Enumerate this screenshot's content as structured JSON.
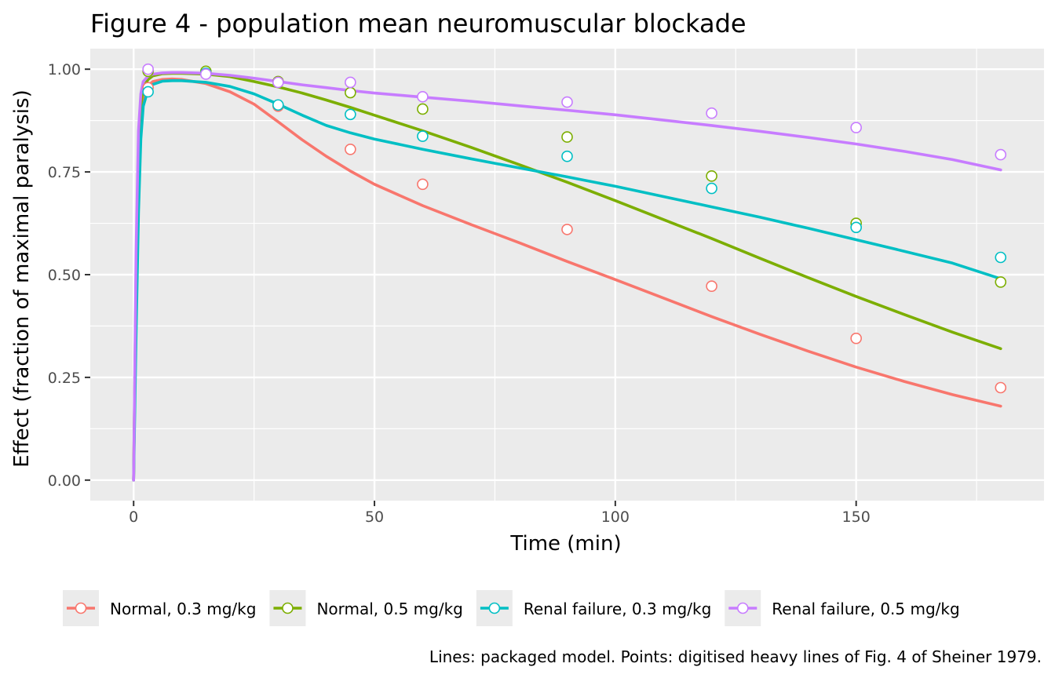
{
  "chart_data": {
    "type": "line",
    "title": "Figure 4 - population mean neuromuscular blockade",
    "xlabel": "Time (min)",
    "ylabel": "Effect (fraction of maximal paralysis)",
    "caption": "Lines: packaged model. Points: digitised heavy lines of Fig. 4 of Sheiner 1979.",
    "xlim": [
      -9,
      189
    ],
    "ylim": [
      -0.05,
      1.05
    ],
    "x_ticks": [
      0,
      50,
      100,
      150
    ],
    "x_tick_labels": [
      "0",
      "50",
      "100",
      "150"
    ],
    "y_ticks": [
      0,
      0.25,
      0.5,
      0.75,
      1.0
    ],
    "y_tick_labels": [
      "0.00",
      "0.25",
      "0.50",
      "0.75",
      "1.00"
    ],
    "grid": true,
    "legend_position": "bottom",
    "series": [
      {
        "name": "Normal, 0.3 mg/kg",
        "color": "#F8766D",
        "line": {
          "x": [
            0,
            0.5,
            1,
            1.5,
            2,
            3,
            4,
            6,
            8,
            10,
            15,
            20,
            25,
            30,
            35,
            40,
            45,
            50,
            60,
            70,
            80,
            90,
            100,
            110,
            120,
            130,
            140,
            150,
            160,
            170,
            180
          ],
          "y": [
            0,
            0.45,
            0.75,
            0.88,
            0.93,
            0.96,
            0.97,
            0.975,
            0.976,
            0.975,
            0.965,
            0.945,
            0.915,
            0.872,
            0.828,
            0.788,
            0.752,
            0.72,
            0.668,
            0.622,
            0.578,
            0.532,
            0.488,
            0.443,
            0.398,
            0.355,
            0.314,
            0.275,
            0.24,
            0.208,
            0.18
          ]
        },
        "points": {
          "x": [
            3,
            15,
            30,
            45,
            60,
            90,
            120,
            150,
            180
          ],
          "y": [
            0.955,
            0.99,
            0.91,
            0.805,
            0.72,
            0.61,
            0.472,
            0.345,
            0.225
          ]
        }
      },
      {
        "name": "Normal, 0.5 mg/kg",
        "color": "#7CAE00",
        "line": {
          "x": [
            0,
            0.5,
            1,
            1.5,
            2,
            3,
            4,
            6,
            8,
            10,
            15,
            20,
            25,
            30,
            35,
            40,
            45,
            50,
            60,
            70,
            80,
            90,
            100,
            110,
            120,
            130,
            140,
            150,
            160,
            170,
            180
          ],
          "y": [
            0,
            0.5,
            0.8,
            0.91,
            0.955,
            0.975,
            0.984,
            0.989,
            0.99,
            0.99,
            0.988,
            0.982,
            0.97,
            0.957,
            0.942,
            0.925,
            0.907,
            0.888,
            0.85,
            0.81,
            0.768,
            0.725,
            0.68,
            0.634,
            0.588,
            0.54,
            0.493,
            0.447,
            0.403,
            0.36,
            0.32
          ]
        },
        "points": {
          "x": [
            3,
            15,
            30,
            45,
            60,
            90,
            120,
            150,
            180
          ],
          "y": [
            0.995,
            0.995,
            0.97,
            0.943,
            0.903,
            0.835,
            0.74,
            0.625,
            0.482
          ]
        }
      },
      {
        "name": "Renal failure, 0.3 mg/kg",
        "color": "#00BFC4",
        "line": {
          "x": [
            0,
            0.5,
            1,
            1.5,
            2,
            3,
            4,
            6,
            8,
            10,
            15,
            20,
            25,
            30,
            35,
            40,
            45,
            50,
            60,
            70,
            80,
            90,
            100,
            110,
            120,
            130,
            140,
            150,
            160,
            170,
            180
          ],
          "y": [
            0,
            0.35,
            0.65,
            0.83,
            0.91,
            0.95,
            0.963,
            0.971,
            0.972,
            0.972,
            0.968,
            0.958,
            0.94,
            0.915,
            0.888,
            0.863,
            0.845,
            0.83,
            0.805,
            0.782,
            0.76,
            0.738,
            0.715,
            0.69,
            0.665,
            0.64,
            0.613,
            0.585,
            0.557,
            0.528,
            0.49
          ]
        },
        "points": {
          "x": [
            3,
            15,
            30,
            45,
            60,
            90,
            120,
            150,
            180
          ],
          "y": [
            0.945,
            0.99,
            0.913,
            0.89,
            0.837,
            0.788,
            0.71,
            0.615,
            0.542
          ]
        }
      },
      {
        "name": "Renal failure, 0.5 mg/kg",
        "color": "#C77CFF",
        "line": {
          "x": [
            0,
            0.5,
            1,
            1.5,
            2,
            3,
            4,
            6,
            8,
            10,
            15,
            20,
            25,
            30,
            35,
            40,
            45,
            50,
            60,
            70,
            80,
            90,
            100,
            110,
            120,
            130,
            140,
            150,
            160,
            170,
            180
          ],
          "y": [
            0,
            0.55,
            0.85,
            0.94,
            0.97,
            0.983,
            0.988,
            0.991,
            0.992,
            0.992,
            0.99,
            0.985,
            0.978,
            0.97,
            0.962,
            0.955,
            0.948,
            0.942,
            0.932,
            0.922,
            0.911,
            0.9,
            0.889,
            0.876,
            0.863,
            0.849,
            0.834,
            0.818,
            0.8,
            0.78,
            0.755
          ]
        },
        "points": {
          "x": [
            3,
            15,
            30,
            45,
            60,
            90,
            120,
            150,
            180
          ],
          "y": [
            1.0,
            0.988,
            0.968,
            0.968,
            0.933,
            0.92,
            0.893,
            0.858,
            0.792
          ]
        }
      }
    ]
  }
}
